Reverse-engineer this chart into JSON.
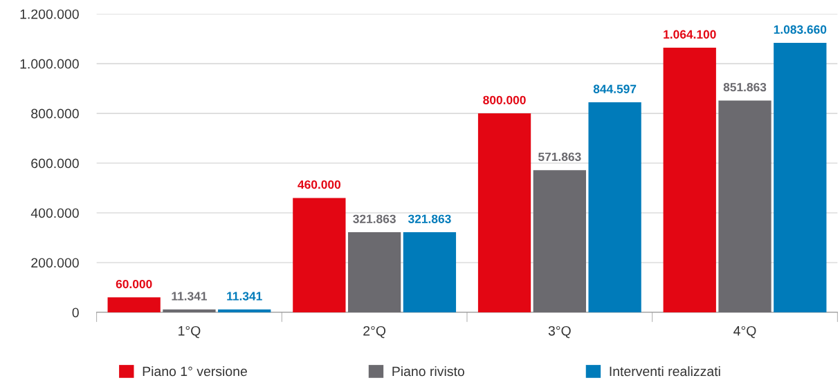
{
  "chart_data": {
    "type": "bar",
    "categories": [
      "1°Q",
      "2°Q",
      "3°Q",
      "4°Q"
    ],
    "series": [
      {
        "name": "Piano 1° versione",
        "color": "#e30613",
        "values": [
          60000,
          460000,
          800000,
          1064100
        ],
        "value_labels": [
          "60.000",
          "460.000",
          "800.000",
          "1.064.100"
        ]
      },
      {
        "name": "Piano rivisto",
        "color": "#6b6a6f",
        "values": [
          11341,
          321863,
          571863,
          851863
        ],
        "value_labels": [
          "11.341",
          "321.863",
          "571.863",
          "851.863"
        ]
      },
      {
        "name": "Interventi realizzati",
        "color": "#007bba",
        "values": [
          11341,
          321863,
          844597,
          1083660
        ],
        "value_labels": [
          "11.341",
          "321.863",
          "844.597",
          "1.083.660"
        ]
      }
    ],
    "ylim": [
      0,
      1200000
    ],
    "yticks": [
      {
        "value": 0,
        "label": "0"
      },
      {
        "value": 200000,
        "label": "200.000"
      },
      {
        "value": 400000,
        "label": "400.000"
      },
      {
        "value": 600000,
        "label": "600.000"
      },
      {
        "value": 800000,
        "label": "800.000"
      },
      {
        "value": 1000000,
        "label": "1.000.000"
      },
      {
        "value": 1200000,
        "label": "1.200.000"
      }
    ],
    "grid": "y",
    "legend": "bottom"
  }
}
